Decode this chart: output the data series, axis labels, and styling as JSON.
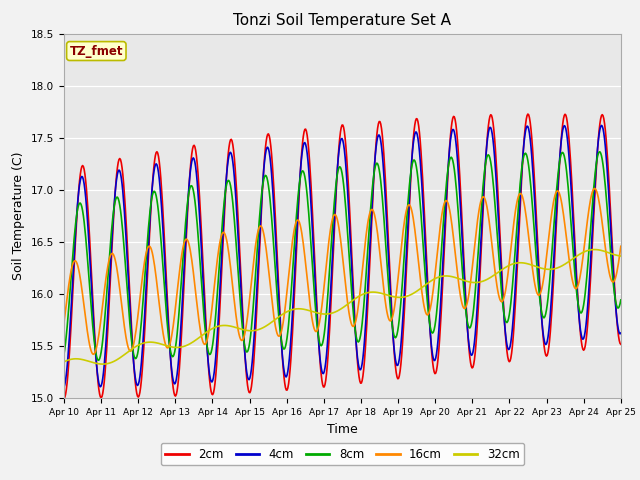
{
  "title": "Tonzi Soil Temperature Set A",
  "xlabel": "Time",
  "ylabel": "Soil Temperature (C)",
  "ylim": [
    15.0,
    18.5
  ],
  "days": 15,
  "background_color": "#f2f2f2",
  "plot_bg_color": "#e8e8e8",
  "legend_label": "TZ_fmet",
  "legend_text_color": "#8b0000",
  "legend_bg_color": "#ffffcc",
  "legend_border_color": "#bbbb00",
  "series": {
    "2cm": {
      "color": "#ee0000",
      "linewidth": 1.2
    },
    "4cm": {
      "color": "#0000cc",
      "linewidth": 1.2
    },
    "8cm": {
      "color": "#00aa00",
      "linewidth": 1.2
    },
    "16cm": {
      "color": "#ff8800",
      "linewidth": 1.2
    },
    "32cm": {
      "color": "#cccc00",
      "linewidth": 1.2
    }
  },
  "x_tick_labels": [
    "Apr 10",
    "Apr 11",
    "Apr 12",
    "Apr 13",
    "Apr 14",
    "Apr 15",
    "Apr 16",
    "Apr 17",
    "Apr 18",
    "Apr 19",
    "Apr 20",
    "Apr 21",
    "Apr 22",
    "Apr 23",
    "Apr 24",
    "Apr 25"
  ],
  "yticks": [
    15.0,
    15.5,
    16.0,
    16.5,
    17.0,
    17.5,
    18.0,
    18.5
  ],
  "n_points": 720
}
